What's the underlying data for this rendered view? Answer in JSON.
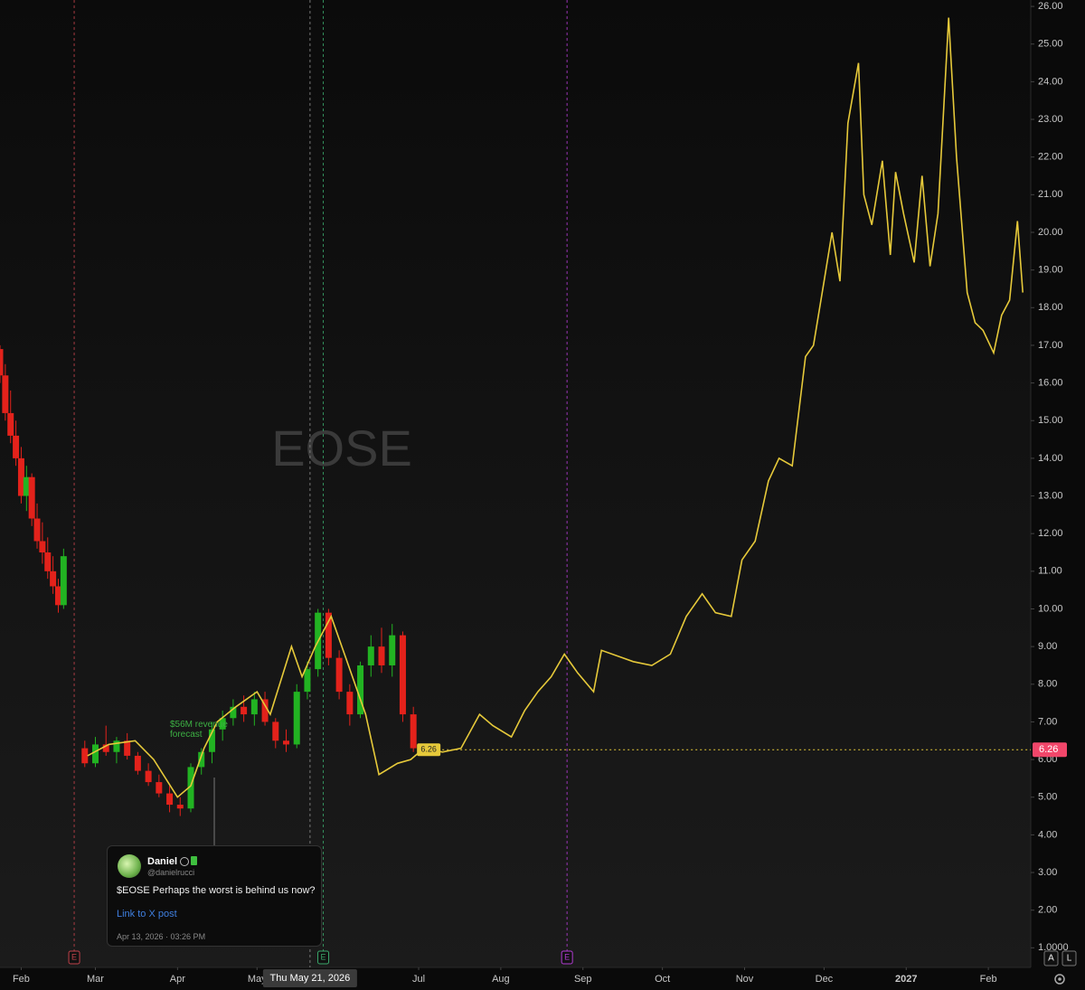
{
  "chart_data": {
    "type": "candlestick",
    "watermark": "EOSE",
    "x": [
      "2026-01-24",
      "2026-01-26",
      "2026-01-28",
      "2026-01-30",
      "2026-02-01",
      "2026-02-03",
      "2026-02-05",
      "2026-02-07",
      "2026-02-09",
      "2026-02-11",
      "2026-02-13",
      "2026-02-15",
      "2026-02-17",
      "2026-02-25",
      "2026-03-01",
      "2026-03-05",
      "2026-03-09",
      "2026-03-13",
      "2026-03-17",
      "2026-03-21",
      "2026-03-25",
      "2026-03-29",
      "2026-04-02",
      "2026-04-06",
      "2026-04-10",
      "2026-04-14",
      "2026-04-18",
      "2026-04-22",
      "2026-04-26",
      "2026-04-30",
      "2026-05-04",
      "2026-05-08",
      "2026-05-12",
      "2026-05-16",
      "2026-05-20",
      "2026-05-24",
      "2026-05-28",
      "2026-06-01",
      "2026-06-05",
      "2026-06-09",
      "2026-06-13",
      "2026-06-17",
      "2026-06-21",
      "2026-06-25",
      "2026-06-29"
    ],
    "open": [
      16.9,
      16.2,
      15.2,
      14.6,
      14.0,
      13.0,
      13.5,
      12.4,
      11.8,
      11.5,
      11.0,
      10.6,
      10.1,
      6.3,
      5.9,
      6.4,
      6.2,
      6.5,
      6.1,
      5.7,
      5.4,
      5.1,
      4.8,
      4.7,
      5.8,
      6.2,
      6.8,
      7.1,
      7.4,
      7.2,
      7.6,
      7.0,
      6.5,
      6.4,
      7.8,
      8.4,
      9.9,
      8.7,
      7.8,
      7.2,
      8.5,
      9.0,
      8.5,
      9.3,
      7.2
    ],
    "high": [
      17.0,
      16.5,
      15.8,
      15.0,
      14.3,
      13.8,
      13.6,
      12.8,
      12.3,
      11.9,
      11.4,
      10.8,
      11.6,
      6.5,
      6.6,
      6.9,
      6.6,
      6.7,
      6.2,
      5.9,
      5.6,
      5.3,
      5.0,
      5.9,
      6.3,
      7.0,
      7.3,
      7.6,
      7.7,
      7.8,
      7.8,
      7.1,
      6.8,
      8.0,
      8.6,
      10.0,
      10.0,
      8.9,
      8.0,
      8.6,
      9.3,
      9.5,
      9.6,
      9.4,
      7.4
    ],
    "low": [
      16.0,
      15.0,
      14.4,
      13.8,
      12.8,
      12.6,
      12.2,
      11.6,
      11.2,
      10.8,
      10.4,
      9.9,
      10.0,
      5.8,
      5.8,
      6.1,
      5.9,
      6.0,
      5.6,
      5.3,
      5.0,
      4.6,
      4.5,
      4.6,
      5.6,
      5.9,
      6.5,
      6.9,
      7.0,
      6.9,
      6.9,
      6.3,
      6.2,
      6.3,
      7.6,
      8.2,
      8.5,
      7.6,
      6.9,
      7.1,
      8.2,
      8.3,
      8.2,
      7.0,
      6.2
    ],
    "close": [
      16.2,
      15.2,
      14.6,
      14.0,
      13.0,
      13.5,
      12.4,
      11.8,
      11.5,
      11.0,
      10.6,
      10.1,
      11.4,
      5.9,
      6.4,
      6.2,
      6.5,
      6.1,
      5.7,
      5.4,
      5.1,
      4.8,
      4.7,
      5.8,
      6.2,
      6.8,
      7.1,
      7.4,
      7.2,
      7.6,
      7.0,
      6.5,
      6.4,
      7.8,
      8.4,
      9.9,
      8.7,
      7.8,
      7.2,
      8.5,
      9.0,
      8.5,
      9.3,
      7.2,
      6.3
    ],
    "up_color": "#22b322",
    "down_color": "#e3221b",
    "overlay": {
      "type": "line",
      "color": "#e6c93a",
      "x": [
        "2026-02-26",
        "2026-03-06",
        "2026-03-16",
        "2026-03-23",
        "2026-04-01",
        "2026-04-06",
        "2026-04-11",
        "2026-04-16",
        "2026-04-23",
        "2026-05-01",
        "2026-05-06",
        "2026-05-14",
        "2026-05-18",
        "2026-05-23",
        "2026-05-29",
        "2026-06-03",
        "2026-06-08",
        "2026-06-11",
        "2026-06-16",
        "2026-06-23",
        "2026-06-28",
        "2026-07-03",
        "2026-07-10",
        "2026-07-17",
        "2026-07-24",
        "2026-07-29",
        "2026-08-05",
        "2026-08-10",
        "2026-08-15",
        "2026-08-20",
        "2026-08-25",
        "2026-08-30",
        "2026-09-05",
        "2026-09-08",
        "2026-09-16",
        "2026-09-20",
        "2026-09-27",
        "2026-10-04",
        "2026-10-10",
        "2026-10-16",
        "2026-10-21",
        "2026-10-27",
        "2026-10-31",
        "2026-11-05",
        "2026-11-10",
        "2026-11-14",
        "2026-11-19",
        "2026-11-24",
        "2026-11-27",
        "2026-12-01",
        "2026-12-04",
        "2026-12-07",
        "2026-12-10",
        "2026-12-14",
        "2026-12-16",
        "2026-12-19",
        "2026-12-23",
        "2026-12-26",
        "2026-12-28",
        "2026-12-31",
        "2027-01-04",
        "2027-01-07",
        "2027-01-10",
        "2027-01-13",
        "2027-01-17",
        "2027-01-20",
        "2027-01-24",
        "2027-01-27",
        "2027-01-30",
        "2027-02-03",
        "2027-02-06",
        "2027-02-09",
        "2027-02-12",
        "2027-02-14"
      ],
      "values": [
        6.1,
        6.4,
        6.5,
        6.0,
        5.0,
        5.3,
        6.3,
        7.0,
        7.4,
        7.8,
        7.2,
        9.0,
        8.2,
        9.0,
        9.8,
        8.8,
        7.8,
        7.2,
        5.6,
        5.9,
        6.0,
        6.3,
        6.2,
        6.3,
        7.2,
        6.9,
        6.6,
        7.3,
        7.8,
        8.2,
        8.8,
        8.3,
        7.8,
        8.9,
        8.7,
        8.6,
        8.5,
        8.8,
        9.8,
        10.4,
        9.9,
        9.8,
        11.3,
        11.8,
        13.4,
        14.0,
        13.8,
        16.7,
        17.0,
        18.7,
        20.0,
        18.7,
        22.9,
        24.5,
        21.0,
        20.2,
        21.9,
        19.4,
        21.6,
        20.5,
        19.2,
        21.5,
        19.1,
        20.5,
        25.7,
        22.0,
        18.4,
        17.6,
        17.4,
        16.8,
        17.8,
        18.2,
        20.3,
        18.4
      ]
    },
    "last_price": 6.26,
    "xlim": [
      "2026-01-24",
      "2027-02-17"
    ],
    "xticks": [
      {
        "value": "2026-02-01",
        "label": "Feb"
      },
      {
        "value": "2026-03-01",
        "label": "Mar"
      },
      {
        "value": "2026-04-01",
        "label": "Apr"
      },
      {
        "value": "2026-05-01",
        "label": "May"
      },
      {
        "value": "2026-07-01",
        "label": "Jul"
      },
      {
        "value": "2026-08-01",
        "label": "Aug"
      },
      {
        "value": "2026-09-01",
        "label": "Sep"
      },
      {
        "value": "2026-10-01",
        "label": "Oct"
      },
      {
        "value": "2026-11-01",
        "label": "Nov"
      },
      {
        "value": "2026-12-01",
        "label": "Dec"
      },
      {
        "value": "2027-01-01",
        "label": "2027"
      },
      {
        "value": "2027-02-01",
        "label": "Feb"
      }
    ],
    "ylim": [
      0.48,
      26.17
    ],
    "yticks": [
      {
        "value": 1,
        "label": "1.0000"
      },
      {
        "value": 2,
        "label": "2.00"
      },
      {
        "value": 3,
        "label": "3.00"
      },
      {
        "value": 4,
        "label": "4.00"
      },
      {
        "value": 5,
        "label": "5.00"
      },
      {
        "value": 6,
        "label": "6.00"
      },
      {
        "value": 7,
        "label": "7.00"
      },
      {
        "value": 8,
        "label": "8.00"
      },
      {
        "value": 9,
        "label": "9.00"
      },
      {
        "value": 10,
        "label": "10.00"
      },
      {
        "value": 11,
        "label": "11.00"
      },
      {
        "value": 12,
        "label": "12.00"
      },
      {
        "value": 13,
        "label": "13.00"
      },
      {
        "value": 14,
        "label": "14.00"
      },
      {
        "value": 15,
        "label": "15.00"
      },
      {
        "value": 16,
        "label": "16.00"
      },
      {
        "value": 17,
        "label": "17.00"
      },
      {
        "value": 18,
        "label": "18.00"
      },
      {
        "value": 19,
        "label": "19.00"
      },
      {
        "value": 20,
        "label": "20.00"
      },
      {
        "value": 21,
        "label": "21.00"
      },
      {
        "value": 22,
        "label": "22.00"
      },
      {
        "value": 23,
        "label": "23.00"
      },
      {
        "value": 24,
        "label": "24.00"
      },
      {
        "value": 25,
        "label": "25.00"
      },
      {
        "value": 26,
        "label": "26.00"
      }
    ],
    "events": [
      {
        "date": "2026-02-21",
        "label": "E",
        "color": "#c0414a"
      },
      {
        "date": "2026-05-26",
        "label": "E",
        "color": "#3aa86b"
      },
      {
        "date": "2026-08-26",
        "label": "E",
        "color": "#b13bd1"
      }
    ],
    "crosshair": {
      "date": "2026-05-21",
      "label": "Thu May 21, 2026"
    },
    "annotation": "$56M revenue forecast",
    "buttons": [
      "A",
      "L"
    ]
  },
  "post": {
    "name": "Daniel",
    "handle": "@danielrucci",
    "text": "$EOSE Perhaps the worst is behind us now?",
    "link": "Link to X post",
    "timestamp": "Apr 13, 2026 · 03:26 PM"
  }
}
